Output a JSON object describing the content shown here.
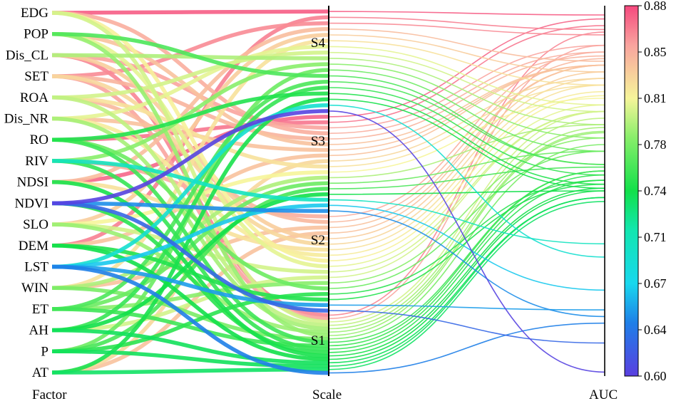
{
  "chart_data": {
    "type": "parallel-coordinates",
    "axes": [
      "Factor",
      "Scale",
      "AUC"
    ],
    "factors": [
      "EDG",
      "POP",
      "Dis_CL",
      "SET",
      "ROA",
      "Dis_NR",
      "RO",
      "RIV",
      "NDSI",
      "NDVI",
      "SLO",
      "DEM",
      "LST",
      "WIN",
      "ET",
      "AH",
      "P",
      "AT"
    ],
    "scales": [
      "S4",
      "S3",
      "S2",
      "S1"
    ],
    "auc_range": [
      0.6,
      0.88
    ],
    "colorbar_ticks": [
      "0.88",
      "0.85",
      "0.81",
      "0.78",
      "0.74",
      "0.71",
      "0.67",
      "0.64",
      "0.60"
    ],
    "colorscale": [
      [
        0.6,
        "#5a3fe0"
      ],
      [
        0.64,
        "#1f7fe8"
      ],
      [
        0.67,
        "#18d8ee"
      ],
      [
        0.71,
        "#12e6b0"
      ],
      [
        0.74,
        "#12e04a"
      ],
      [
        0.78,
        "#88ee6a"
      ],
      [
        0.81,
        "#f6f59a"
      ],
      [
        0.85,
        "#f9a49e"
      ],
      [
        0.88,
        "#f5487e"
      ]
    ],
    "lines": [
      {
        "factor": "EDG",
        "scale": "S4",
        "auc": 0.873
      },
      {
        "factor": "EDG",
        "scale": "S3",
        "auc": 0.845
      },
      {
        "factor": "EDG",
        "scale": "S2",
        "auc": 0.812
      },
      {
        "factor": "EDG",
        "scale": "S1",
        "auc": 0.8
      },
      {
        "factor": "POP",
        "scale": "S4",
        "auc": 0.76
      },
      {
        "factor": "POP",
        "scale": "S3",
        "auc": 0.835
      },
      {
        "factor": "POP",
        "scale": "S2",
        "auc": 0.805
      },
      {
        "factor": "POP",
        "scale": "S1",
        "auc": 0.784
      },
      {
        "factor": "Dis_CL",
        "scale": "S4",
        "auc": 0.79
      },
      {
        "factor": "Dis_CL",
        "scale": "S3",
        "auc": 0.85
      },
      {
        "factor": "Dis_CL",
        "scale": "S2",
        "auc": 0.83
      },
      {
        "factor": "Dis_CL",
        "scale": "S1",
        "auc": 0.86
      },
      {
        "factor": "SET",
        "scale": "S4",
        "auc": 0.858
      },
      {
        "factor": "SET",
        "scale": "S3",
        "auc": 0.842
      },
      {
        "factor": "SET",
        "scale": "S2",
        "auc": 0.825
      },
      {
        "factor": "SET",
        "scale": "S1",
        "auc": 0.85
      },
      {
        "factor": "ROA",
        "scale": "S4",
        "auc": 0.8
      },
      {
        "factor": "ROA",
        "scale": "S3",
        "auc": 0.82
      },
      {
        "factor": "ROA",
        "scale": "S2",
        "auc": 0.84
      },
      {
        "factor": "ROA",
        "scale": "S1",
        "auc": 0.795
      },
      {
        "factor": "Dis_NR",
        "scale": "S4",
        "auc": 0.805
      },
      {
        "factor": "Dis_NR",
        "scale": "S3",
        "auc": 0.835
      },
      {
        "factor": "Dis_NR",
        "scale": "S2",
        "auc": 0.815
      },
      {
        "factor": "Dis_NR",
        "scale": "S1",
        "auc": 0.788
      },
      {
        "factor": "RO",
        "scale": "S4",
        "auc": 0.745
      },
      {
        "factor": "RO",
        "scale": "S3",
        "auc": 0.865
      },
      {
        "factor": "RO",
        "scale": "S2",
        "auc": 0.77
      },
      {
        "factor": "RO",
        "scale": "S1",
        "auc": 0.755
      },
      {
        "factor": "RIV",
        "scale": "S4",
        "auc": 0.78
      },
      {
        "factor": "RIV",
        "scale": "S3",
        "auc": 0.7
      },
      {
        "factor": "RIV",
        "scale": "S2",
        "auc": 0.845
      },
      {
        "factor": "RIV",
        "scale": "S1",
        "auc": 0.752
      },
      {
        "factor": "NDSI",
        "scale": "S4",
        "auc": 0.838
      },
      {
        "factor": "NDSI",
        "scale": "S3",
        "auc": 0.87
      },
      {
        "factor": "NDSI",
        "scale": "S2",
        "auc": 0.82
      },
      {
        "factor": "NDSI",
        "scale": "S1",
        "auc": 0.742
      },
      {
        "factor": "NDVI",
        "scale": "S4",
        "auc": 0.603
      },
      {
        "factor": "NDVI",
        "scale": "S3",
        "auc": 0.645
      },
      {
        "factor": "NDVI",
        "scale": "S2",
        "auc": 0.625
      },
      {
        "factor": "NDVI",
        "scale": "S1",
        "auc": 0.748
      },
      {
        "factor": "SLO",
        "scale": "S4",
        "auc": 0.83
      },
      {
        "factor": "SLO",
        "scale": "S3",
        "auc": 0.81
      },
      {
        "factor": "SLO",
        "scale": "S2",
        "auc": 0.8
      },
      {
        "factor": "SLO",
        "scale": "S1",
        "auc": 0.785
      },
      {
        "factor": "DEM",
        "scale": "S4",
        "auc": 0.862
      },
      {
        "factor": "DEM",
        "scale": "S3",
        "auc": 0.835
      },
      {
        "factor": "DEM",
        "scale": "S2",
        "auc": 0.745
      },
      {
        "factor": "DEM",
        "scale": "S1",
        "auc": 0.74
      },
      {
        "factor": "LST",
        "scale": "S4",
        "auc": 0.69
      },
      {
        "factor": "LST",
        "scale": "S3",
        "auc": 0.665
      },
      {
        "factor": "LST",
        "scale": "S2",
        "auc": 0.65
      },
      {
        "factor": "LST",
        "scale": "S1",
        "auc": 0.64
      },
      {
        "factor": "WIN",
        "scale": "S4",
        "auc": 0.82
      },
      {
        "factor": "WIN",
        "scale": "S3",
        "auc": 0.79
      },
      {
        "factor": "WIN",
        "scale": "S2",
        "auc": 0.835
      },
      {
        "factor": "WIN",
        "scale": "S1",
        "auc": 0.775
      },
      {
        "factor": "ET",
        "scale": "S4",
        "auc": 0.76
      },
      {
        "factor": "ET",
        "scale": "S3",
        "auc": 0.77
      },
      {
        "factor": "ET",
        "scale": "S2",
        "auc": 0.78
      },
      {
        "factor": "ET",
        "scale": "S1",
        "auc": 0.755
      },
      {
        "factor": "AH",
        "scale": "S4",
        "auc": 0.752
      },
      {
        "factor": "AH",
        "scale": "S3",
        "auc": 0.74
      },
      {
        "factor": "AH",
        "scale": "S2",
        "auc": 0.8
      },
      {
        "factor": "AH",
        "scale": "S1",
        "auc": 0.735
      },
      {
        "factor": "P",
        "scale": "S4",
        "auc": 0.77
      },
      {
        "factor": "P",
        "scale": "S3",
        "auc": 0.758
      },
      {
        "factor": "P",
        "scale": "S2",
        "auc": 0.748
      },
      {
        "factor": "P",
        "scale": "S1",
        "auc": 0.735
      },
      {
        "factor": "AT",
        "scale": "S4",
        "auc": 0.742
      },
      {
        "factor": "AT",
        "scale": "S3",
        "auc": 0.825
      },
      {
        "factor": "AT",
        "scale": "S2",
        "auc": 0.835
      },
      {
        "factor": "AT",
        "scale": "S1",
        "auc": 0.732
      }
    ]
  }
}
